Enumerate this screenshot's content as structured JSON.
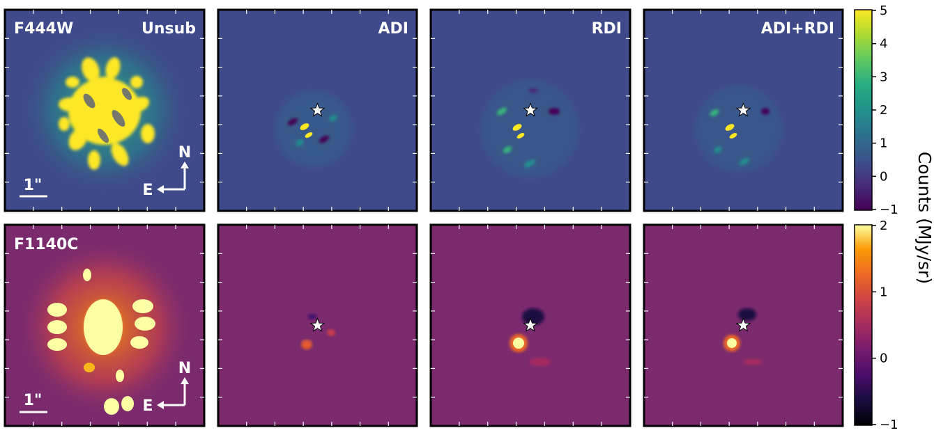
{
  "rows": [
    {
      "filter": "F444W",
      "panels": [
        {
          "method": "Unsub",
          "star": false
        },
        {
          "method": "ADI",
          "star": true
        },
        {
          "method": "RDI",
          "star": true
        },
        {
          "method": "ADI+RDI",
          "star": true
        }
      ],
      "scale_bar": "1\"",
      "compass": {
        "north": "N",
        "east": "E"
      },
      "colorbar": {
        "colormap": "viridis",
        "range": [
          -1,
          5
        ],
        "ticks": [
          "5",
          "4",
          "3",
          "2",
          "1",
          "0",
          "−1"
        ]
      }
    },
    {
      "filter": "F1140C",
      "panels": [
        {
          "method": "",
          "star": false
        },
        {
          "method": "",
          "star": true
        },
        {
          "method": "",
          "star": true
        },
        {
          "method": "",
          "star": true
        }
      ],
      "scale_bar": "1\"",
      "compass": {
        "north": "N",
        "east": "E"
      },
      "colorbar": {
        "colormap": "inferno",
        "range": [
          -1,
          2
        ],
        "ticks": [
          "2",
          "1",
          "0",
          "−1"
        ]
      }
    }
  ],
  "colorbar_label": "Counts (MJy/sr)",
  "colors": {
    "viridis_bg": "#3f4a8a",
    "inferno_bg": "#7b2a6e",
    "viridis_high": "#fde725",
    "inferno_high": "#fcffa4"
  }
}
